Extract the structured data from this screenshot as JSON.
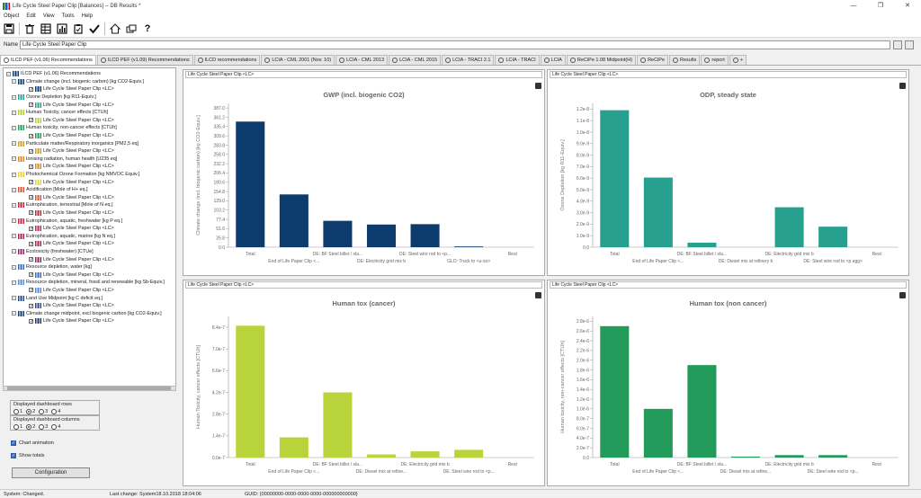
{
  "window": {
    "title": "Life Cycle Steel Paper Clip [Balances] -- DB Results *",
    "minimize": "—",
    "maximize": "❐",
    "close": "✕"
  },
  "menu": [
    "Object",
    "Edit",
    "View",
    "Tools",
    "Help"
  ],
  "name_field": {
    "label": "Name",
    "value": "Life Cycle Steel Paper Clip"
  },
  "tabs": [
    {
      "label": "ILCD PEF (v1.06) Recommendations",
      "active": true
    },
    {
      "label": "ILCD PEF (v1.09) Recommendations"
    },
    {
      "label": "ILCD recommendations"
    },
    {
      "label": "LCIA - CML 2001 (Nov. 10)"
    },
    {
      "label": "LCIA - CML 2013"
    },
    {
      "label": "LCIA - CML 2015"
    },
    {
      "label": "LCIA - TRACI 2.1"
    },
    {
      "label": "LCIA - TRACI"
    },
    {
      "label": "LCIA"
    },
    {
      "label": "ReCiPe 1.08 Midpoint(H)"
    },
    {
      "label": "ReCiPe"
    },
    {
      "label": "Results"
    },
    {
      "label": "report"
    },
    {
      "label": "+"
    }
  ],
  "tree": {
    "root": "ILCD PEF (v1.06) Recommendations",
    "items": [
      {
        "label": "Climate change (incl. biogenic carbon) [kg CO2-Equiv.]",
        "color": "#0d3b6e",
        "child": "Life Cycle Steel Paper Clip <LC>"
      },
      {
        "label": "Ozone Depletion [kg R11-Equiv.]",
        "color": "#27a08f",
        "child": "Life Cycle Steel Paper Clip <LC>"
      },
      {
        "label": "Human Toxicity, cancer effects [CTUh]",
        "color": "#b5cf3a",
        "child": "Life Cycle Steel Paper Clip <LC>"
      },
      {
        "label": "Human toxicity, non-cancer effects [CTUh]",
        "color": "#229a5a",
        "child": "Life Cycle Steel Paper Clip <LC>"
      },
      {
        "label": "Particulate matter/Respiratory inorganics [PM2,5 eq]",
        "color": "#c9a227",
        "child": "Life Cycle Steel Paper Clip <LC>"
      },
      {
        "label": "Ionising radiation, human health [U235 eq]",
        "color": "#d98a2b",
        "child": "Life Cycle Steel Paper Clip <LC>"
      },
      {
        "label": "Photochemical Ozone Formation [kg NMVOC Equiv.]",
        "color": "#e8d13a",
        "child": "Life Cycle Steel Paper Clip <LC>"
      },
      {
        "label": "Acidification [Mole of H+ eq.]",
        "color": "#d4553a",
        "child": "Life Cycle Steel Paper Clip <LC>"
      },
      {
        "label": "Eutrophication, terrestrial [Mole of N eq.]",
        "color": "#b52a3a",
        "child": "Life Cycle Steel Paper Clip <LC>"
      },
      {
        "label": "Eutrophication, aquatic, freshwater [kg P eq.]",
        "color": "#c02a4a",
        "child": "Life Cycle Steel Paper Clip <LC>"
      },
      {
        "label": "Eutrophication, aquatic, marine [kg N eq.]",
        "color": "#a2294f",
        "child": "Life Cycle Steel Paper Clip <LC>"
      },
      {
        "label": "Ecotoxicity (freshwater) [CTUe]",
        "color": "#8a2a6a",
        "child": "Life Cycle Steel Paper Clip <LC>"
      },
      {
        "label": "Resource depletion, water [kg]",
        "color": "#3a6ab5",
        "child": "Life Cycle Steel Paper Clip <LC>"
      },
      {
        "label": "Resource depletion, mineral, fossil and renewable [kg Sb-Equiv.]",
        "color": "#5a8ad0",
        "child": "Life Cycle Steel Paper Clip <LC>"
      },
      {
        "label": "Land Use Midpoint [kg C deficit eq.]",
        "color": "#2a4a8a",
        "child": "Life Cycle Steel Paper Clip <LC>"
      },
      {
        "label": "Climate change midpoint, excl biogenic carbon [kg CO2-Equiv.]",
        "color": "#1a3a6a",
        "child": "Life Cycle Steel Paper Clip <LC>"
      }
    ]
  },
  "dashboard": {
    "rows_label": "Displayed dashboard rows",
    "rows_options": [
      "1",
      "2",
      "3",
      "4"
    ],
    "rows_selected": "2",
    "cols_label": "Displayed dashboard columns",
    "cols_options": [
      "1",
      "2",
      "3",
      "4"
    ],
    "cols_selected": "2",
    "chart_animation": "Chart animation",
    "show_totals": "Show totals",
    "config_button": "Configuration"
  },
  "panel_header": "Life Cycle Steel Paper Clip <LC>",
  "categories_x_top": [
    "Total",
    "End of Life Paper Clip <...",
    "DE: BF Steel billet / sla...",
    "DE: Electricity grid mix b",
    "DE: Steel wire rod to <p...",
    "GLO: Truck to <u-so>",
    "Rest"
  ],
  "chart_data": [
    {
      "type": "bar",
      "title": "GWP (incl. biogenic CO2)",
      "ylabel": "Climate change (incl. biogenic carbon) [kg CO2-Equiv.]",
      "color": "#0d3b6e",
      "categories": [
        "Total",
        "End of Life Paper Clip <...",
        "DE: BF Steel billet / sla...",
        "DE: Electricity grid mix b",
        "DE: Steel wire rod to <p...",
        "GLO: Truck to <u-so>",
        "Rest"
      ],
      "values": [
        338,
        142,
        71,
        61,
        62,
        2,
        0
      ],
      "yticks": [
        "0.0",
        "25.8",
        "51.6",
        "77.4",
        "103.2",
        "129.0",
        "154.8",
        "180.6",
        "206.4",
        "232.2",
        "258.0",
        "283.8",
        "309.6",
        "335.4",
        "361.2",
        "387.0"
      ],
      "ylim": [
        0,
        387
      ]
    },
    {
      "type": "bar",
      "title": "ODP, steady state",
      "ylabel": "Ozone Depletion [kg R11-Equiv.]",
      "color": "#27a08f",
      "categories": [
        "Total",
        "End of Life Paper Clip <...",
        "DE: BF Steel billet / sla...",
        "DE: Diesel mix at refinery b",
        "DE: Electricity grid mix b",
        "DE: Steel wire rod to <p agg>",
        "Rest"
      ],
      "values": [
        1.2e-08,
        6.1e-09,
        4e-10,
        0,
        3.5e-09,
        1.8e-09,
        0
      ],
      "yticks": [
        "0.0",
        "1.0e-9",
        "2.0e-9",
        "3.0e-9",
        "4.0e-9",
        "5.0e-9",
        "6.0e-9",
        "7.0e-9",
        "8.0e-9",
        "9.0e-9",
        "1.0e-8",
        "1.1e-8",
        "1.2e-8"
      ],
      "ylim": [
        0,
        1.26e-08
      ]
    },
    {
      "type": "bar",
      "title": "Human tox (cancer)",
      "ylabel": "Human Toxicity, cancer effects [CTUh]",
      "color": "#b8d43a",
      "categories": [
        "Total",
        "End of Life Paper Clip <...",
        "DE: BF Steel billet / sla...",
        "DE: Diesel mix at refine...",
        "DE: Electricity grid mix b",
        "DE: Steel wire rod to <p...",
        "Rest"
      ],
      "values": [
        8.5e-07,
        1.3e-07,
        4.2e-07,
        2e-08,
        4e-08,
        5e-08,
        0
      ],
      "yticks": [
        "0.0e-7",
        "1.4e-7",
        "2.8e-7",
        "4.2e-7",
        "5.6e-7",
        "7.0e-7",
        "8.4e-7"
      ],
      "ylim": [
        0,
        9.1e-07
      ]
    },
    {
      "type": "bar",
      "title": "Human tox (non cancer)",
      "ylabel": "Human toxicity, non-cancer effects [CTUh]",
      "color": "#229a5a",
      "categories": [
        "Total",
        "End of Life Paper Clip <...",
        "DE: BF Steel billet / sla...",
        "DE: Diesel mix at refine...",
        "DE: Electricity grid mix b",
        "DE: Steel wire rod to <p...",
        "Rest"
      ],
      "values": [
        2.7e-06,
        1e-06,
        1.9e-06,
        2e-08,
        5e-08,
        5e-08,
        0
      ],
      "yticks": [
        "0.0",
        "2.0e-7",
        "4.0e-7",
        "6.0e-7",
        "8.0e-7",
        "1.0e-6",
        "1.2e-6",
        "1.4e-6",
        "1.6e-6",
        "1.8e-6",
        "2.0e-6",
        "2.2e-6",
        "2.4e-6",
        "2.6e-6",
        "2.8e-6"
      ],
      "ylim": [
        0,
        2.9e-06
      ]
    }
  ],
  "status": {
    "left": "System: Changed.",
    "middle": "Last change: System18.10.2018 18:04:06",
    "right": "GUID: {00000000-0000-0000-0000-000000000000}"
  }
}
